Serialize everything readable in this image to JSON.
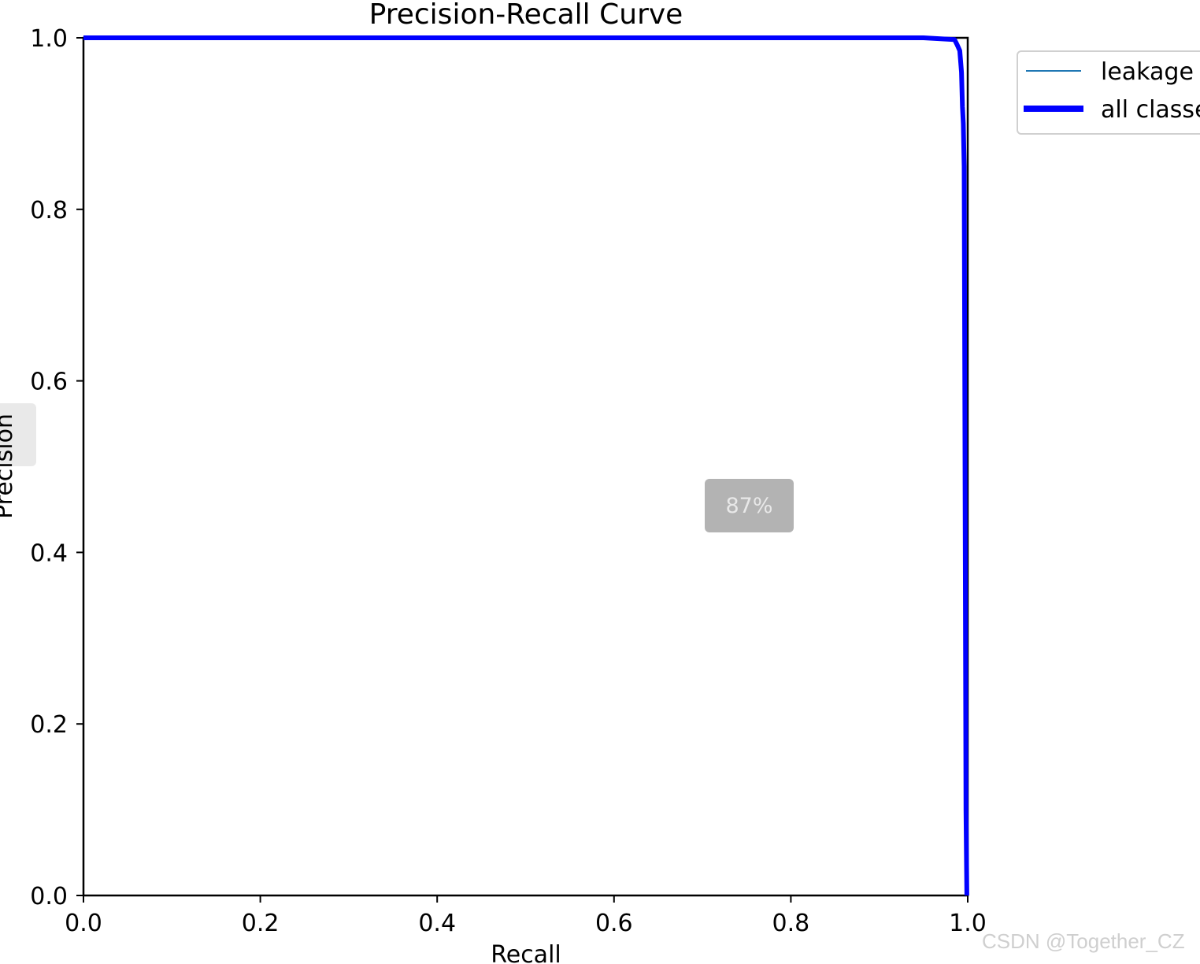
{
  "chart_data": {
    "type": "line",
    "title": "Precision-Recall Curve",
    "xlabel": "Recall",
    "ylabel": "Precision",
    "xlim": [
      0,
      1
    ],
    "ylim": [
      0,
      1
    ],
    "xticks": [
      "0.0",
      "0.2",
      "0.4",
      "0.6",
      "0.8",
      "1.0"
    ],
    "yticks": [
      "0.0",
      "0.2",
      "0.4",
      "0.6",
      "0.8",
      "1.0"
    ],
    "grid": false,
    "legend_position": "outside-top-right",
    "series": [
      {
        "name": "leakage",
        "color": "#1f77b4",
        "x": [
          0.0,
          0.95,
          0.985,
          0.988,
          0.991,
          0.993,
          0.994,
          0.995,
          0.996,
          0.997,
          0.998,
          0.999
        ],
        "y": [
          1.0,
          1.0,
          0.998,
          0.992,
          0.985,
          0.96,
          0.92,
          0.9,
          0.85,
          0.5,
          0.1,
          0.0
        ]
      },
      {
        "name": "all classes",
        "color": "#0000ff",
        "x": [
          0.0,
          0.95,
          0.985,
          0.988,
          0.991,
          0.993,
          0.994,
          0.995,
          0.996,
          0.997,
          0.998,
          0.999
        ],
        "y": [
          1.0,
          1.0,
          0.998,
          0.992,
          0.985,
          0.96,
          0.92,
          0.9,
          0.85,
          0.5,
          0.1,
          0.0
        ]
      }
    ]
  },
  "overlay": {
    "zoom_level": "87%",
    "watermark": "CSDN @Together_CZ"
  }
}
